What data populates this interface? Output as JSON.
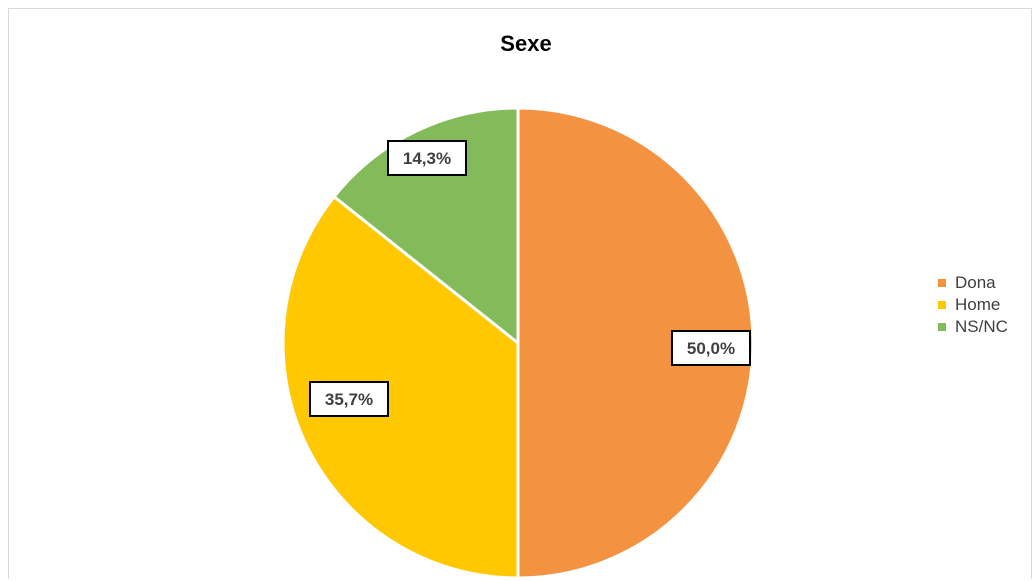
{
  "chart_data": {
    "type": "pie",
    "title": "Sexe",
    "categories": [
      "Dona",
      "Home",
      "NS/NC"
    ],
    "values": [
      50.0,
      35.7,
      14.3
    ],
    "data_labels": [
      "50,0%",
      "35,7%",
      "14,3%"
    ],
    "colors": [
      "#f39240",
      "#ffc800",
      "#84bb5a"
    ],
    "legend_position": "right",
    "start_angle": "12 o'clock, clockwise"
  }
}
